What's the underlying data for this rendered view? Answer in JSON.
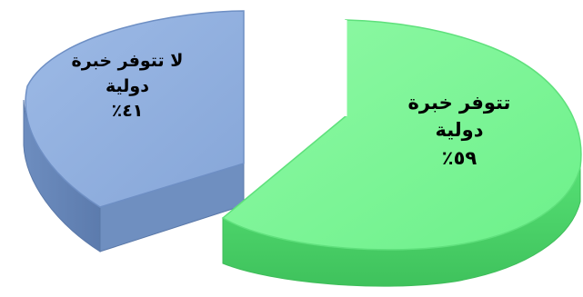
{
  "chart_data": {
    "type": "pie",
    "style": "3d-exploded",
    "slices": [
      {
        "label_line1": "لا تتوفر خبرة",
        "label_line2": "دولية",
        "percent_label": "٤١٪",
        "value": 41,
        "color": "#8eaedf"
      },
      {
        "label_line1": "تتوفر خبرة",
        "label_line2": "دولية",
        "percent_label": "٥٩٪",
        "value": 59,
        "color": "#7ff79a"
      }
    ]
  }
}
